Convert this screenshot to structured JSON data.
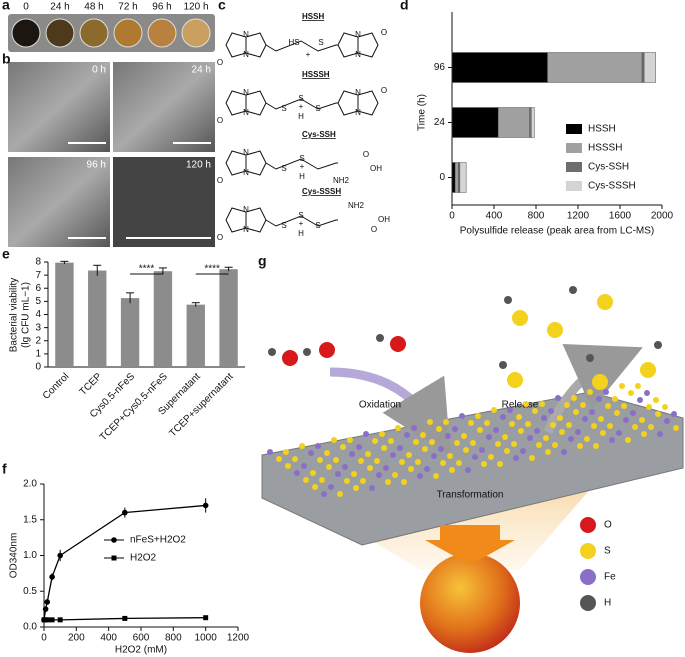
{
  "panel_labels": [
    "a",
    "b",
    "c",
    "d",
    "e",
    "f",
    "g"
  ],
  "photo_a": {
    "labels": [
      "0",
      "24 h",
      "48 h",
      "72 h",
      "96 h",
      "120 h"
    ]
  },
  "sem_b": {
    "labels": [
      "0 h",
      "24 h",
      "96 h",
      "120 h"
    ]
  },
  "molecules": [
    {
      "name": "HSSH",
      "atoms": [
        "N",
        "N",
        "O",
        "HS",
        "S",
        "+",
        "N",
        "N",
        "O"
      ]
    },
    {
      "name": "HSSSH",
      "atoms": [
        "N",
        "N",
        "O",
        "S",
        "S",
        "S",
        "+",
        "H",
        "N",
        "N",
        "O"
      ]
    },
    {
      "name": "Cys-SSH",
      "atoms": [
        "N",
        "N",
        "O",
        "S",
        "S",
        "+",
        "H",
        "NH2",
        "OH",
        "O"
      ]
    },
    {
      "name": "Cys-SSSH",
      "atoms": [
        "N",
        "N",
        "O",
        "S",
        "S",
        "S",
        "+",
        "H",
        "NH2",
        "O",
        "OH"
      ]
    }
  ],
  "scheme_g": {
    "labels": [
      "Oxidation",
      "Release",
      "Transformation"
    ],
    "legend": [
      {
        "name": "O",
        "color": "#d7191c"
      },
      {
        "name": "S",
        "color": "#f2d21c"
      },
      {
        "name": "Fe",
        "color": "#8a6fc9"
      },
      {
        "name": "H",
        "color": "#555555"
      }
    ]
  },
  "chart_data": [
    {
      "type": "stacked-barh",
      "categories": [
        "0",
        "24",
        "96"
      ],
      "series": [
        {
          "name": "HSSH",
          "color": "#000000",
          "values": [
            30,
            440,
            910
          ]
        },
        {
          "name": "HSSSH",
          "color": "#a0a0a0",
          "values": [
            30,
            300,
            900
          ]
        },
        {
          "name": "Cys-SSH",
          "color": "#6e6e6e",
          "values": [
            15,
            15,
            20
          ]
        },
        {
          "name": "Cys-SSSH",
          "color": "#d4d4d4",
          "values": [
            60,
            30,
            110
          ]
        }
      ],
      "xlim": [
        0,
        2000
      ],
      "xticks": [
        0,
        400,
        800,
        1200,
        1600,
        2000
      ],
      "xlabel": "Polysulfide release (peak area from LC-MS)",
      "ylabel": "Time (h)"
    },
    {
      "type": "bar",
      "categories": [
        "Control",
        "TCEP",
        "Cys0.5-nFeS",
        "TCEP+Cys0.5-nFeS",
        "Supernatant",
        "TCEP+supernatant"
      ],
      "values": [
        7.95,
        7.35,
        5.25,
        7.3,
        4.75,
        7.45
      ],
      "errors": [
        0.1,
        0.4,
        0.4,
        0.25,
        0.15,
        0.15
      ],
      "color": "#8c8c8c",
      "ylim": [
        0,
        8
      ],
      "yticks": [
        0,
        1,
        2,
        3,
        4,
        5,
        6,
        7,
        8
      ],
      "ylabel": [
        "Bacterial viability",
        "(lg CFU mL−1)"
      ],
      "annotations": [
        "****",
        "****"
      ]
    },
    {
      "type": "line",
      "x": [
        0,
        10,
        20,
        50,
        100,
        500,
        1000
      ],
      "series": [
        {
          "name": "nFeS+H2O2",
          "color": "#000000",
          "marker": "circle",
          "values": [
            0.1,
            0.25,
            0.35,
            0.7,
            1.0,
            1.6,
            1.7
          ],
          "errors": [
            0.02,
            0.02,
            0.03,
            0.05,
            0.08,
            0.07,
            0.1
          ]
        },
        {
          "name": "H2O2",
          "color": "#000000",
          "marker": "square",
          "values": [
            0.1,
            0.1,
            0.1,
            0.1,
            0.1,
            0.12,
            0.13
          ]
        }
      ],
      "xlim": [
        0,
        1200
      ],
      "xticks": [
        0,
        200,
        400,
        600,
        800,
        1000,
        1200
      ],
      "ylim": [
        0,
        2
      ],
      "yticks": [
        {
          "value": 0,
          "label": "0.0"
        },
        0.5,
        {
          "value": 1,
          "label": "1.0"
        },
        1.5,
        {
          "value": 2,
          "label": "2.0"
        }
      ],
      "xlabel": "H2O2 (mM)",
      "ylabel": "OD340nm"
    }
  ]
}
